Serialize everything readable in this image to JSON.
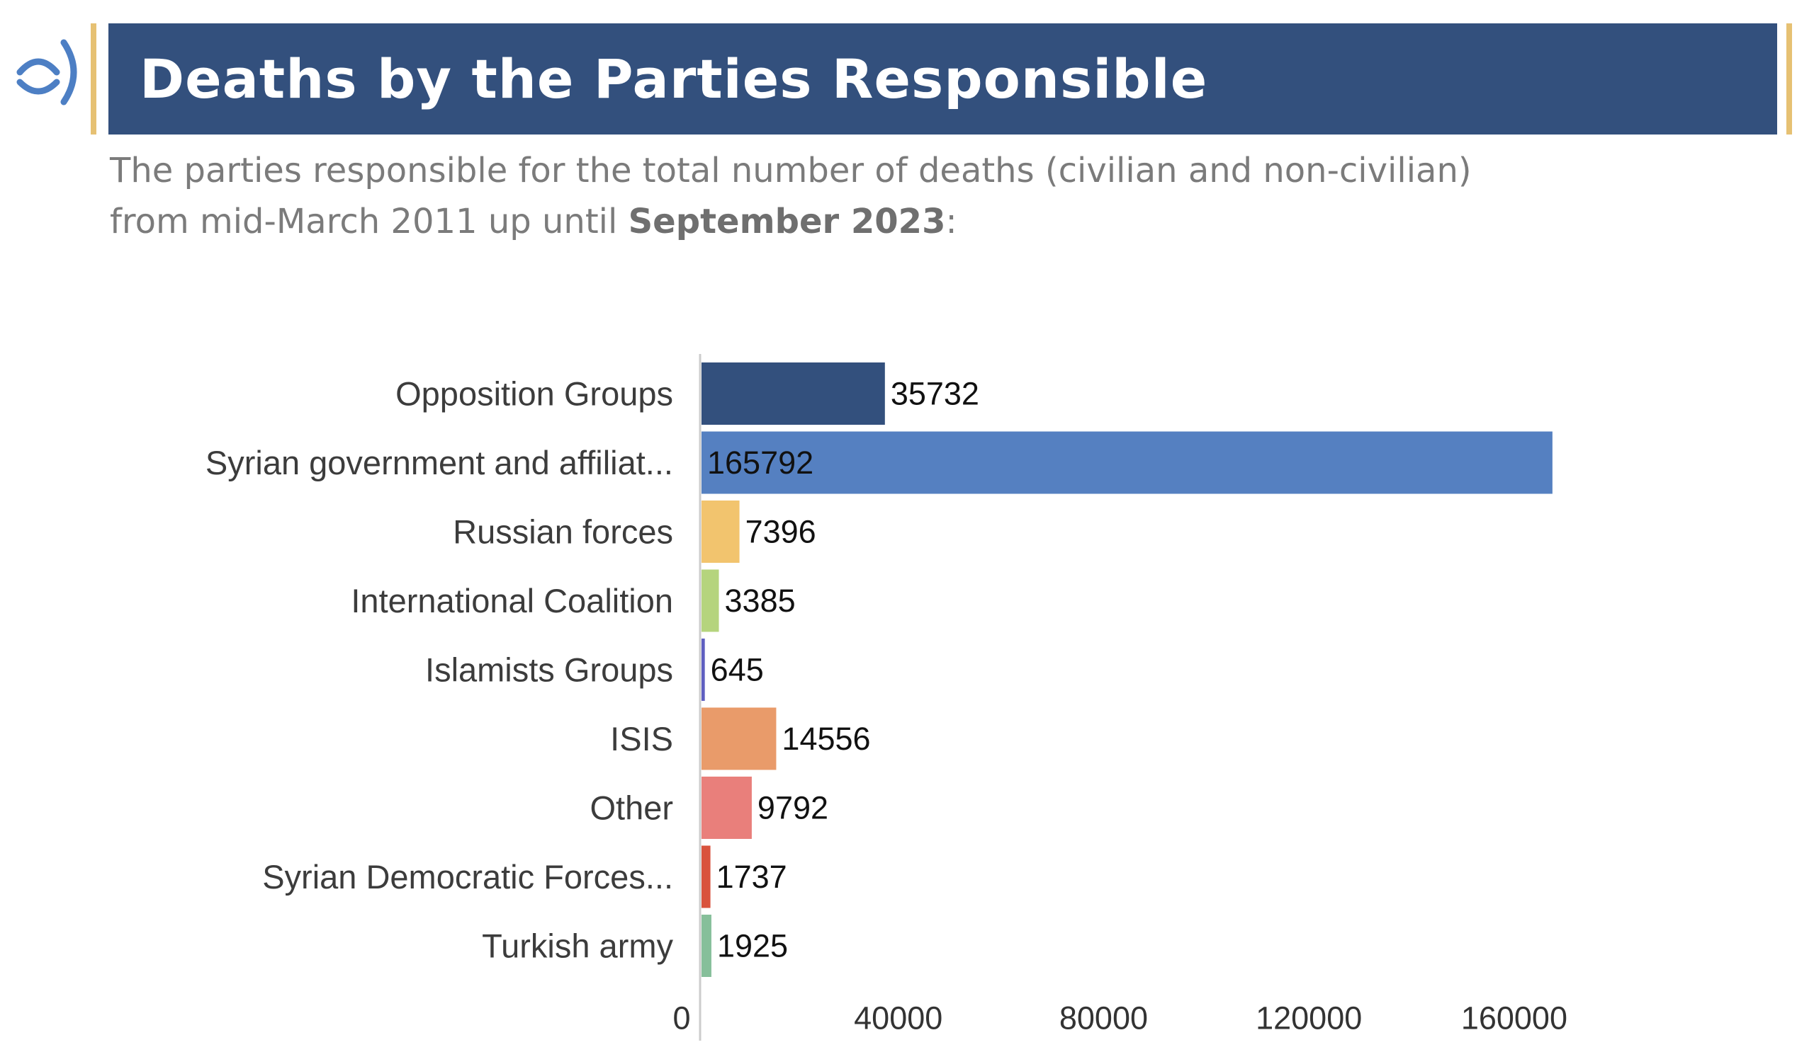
{
  "header": {
    "title": "Deaths by the Parties Responsible",
    "subtitle_line1": "The parties responsible for the total number of deaths (civilian and non-civilian)",
    "subtitle_line2_prefix": "from mid-March 2011 up until ",
    "subtitle_line2_bold": "September 2023",
    "subtitle_line2_suffix": ":"
  },
  "logo": {
    "icon": "organization-logo-icon",
    "color": "#4d7fc4"
  },
  "colors": {
    "banner": "#33507d",
    "accent": "#e6c173"
  },
  "chart_data": {
    "type": "bar",
    "orientation": "horizontal",
    "title": "Deaths by the Parties Responsible",
    "xlabel": "",
    "ylabel": "",
    "categories": [
      "Opposition Groups",
      "Syrian government and affiliat...",
      "Russian forces",
      "International Coalition",
      "Islamists Groups",
      "ISIS",
      "Other",
      "Syrian Democratic Forces...",
      "Turkish army"
    ],
    "values": [
      35732,
      165792,
      7396,
      3385,
      645,
      14556,
      9792,
      1737,
      1925
    ],
    "bar_colors": [
      "#33507d",
      "#5580c1",
      "#f2c46e",
      "#b5d47d",
      "#5f5fc0",
      "#e99b6a",
      "#e97f7b",
      "#d9533d",
      "#86bf9a"
    ],
    "value_label_colors": [
      "#ffffff",
      "#111111",
      "#111111",
      "#111111",
      "#111111",
      "#111111",
      "#111111",
      "#111111",
      "#111111"
    ],
    "xlim": [
      0,
      185000
    ],
    "xticks": [
      0,
      40000,
      80000,
      120000,
      160000
    ],
    "grid": false,
    "legend": "none"
  }
}
